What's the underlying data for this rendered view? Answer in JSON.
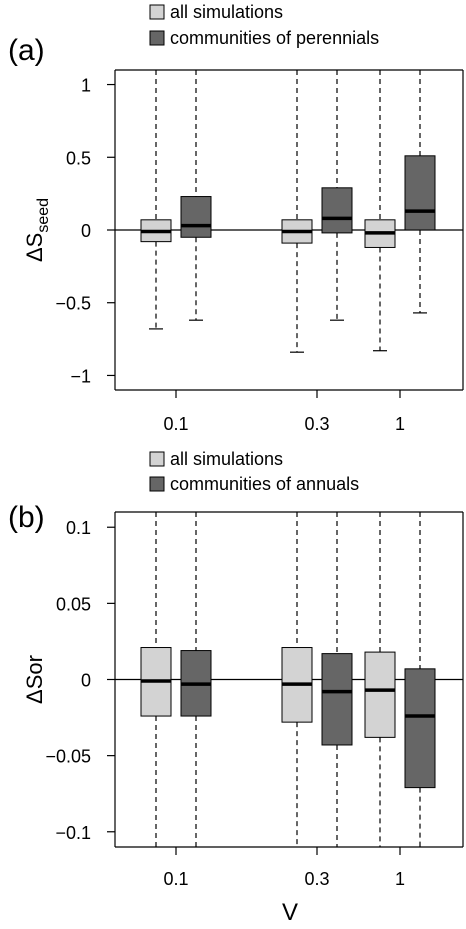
{
  "x_axis_label": "V",
  "chart_data": [
    {
      "type": "boxplot",
      "panel_label": "(a)",
      "ylabel": "ΔS",
      "ylabel_subscript": "seed",
      "ylim": [
        -1.1,
        1.1
      ],
      "yticks": [
        1,
        0.5,
        0,
        -0.5,
        -1
      ],
      "ytick_labels": [
        "1",
        "0.5",
        "0",
        "−0.5",
        "−1"
      ],
      "reference_line": 0,
      "categories": [
        "0.1",
        "0.3",
        "1"
      ],
      "legend": [
        {
          "name": "all simulations",
          "color": "#d3d3d3"
        },
        {
          "name": "communities of perennials",
          "color": "#666666"
        }
      ],
      "series": [
        {
          "name": "all simulations",
          "color": "#d3d3d3",
          "boxes": [
            {
              "min": -0.68,
              "q1": -0.08,
              "median": -0.01,
              "q3": 0.07,
              "max": 1.1
            },
            {
              "min": -0.84,
              "q1": -0.09,
              "median": -0.01,
              "q3": 0.07,
              "max": 1.1
            },
            {
              "min": -0.83,
              "q1": -0.12,
              "median": -0.02,
              "q3": 0.07,
              "max": 1.1
            }
          ]
        },
        {
          "name": "communities of perennials",
          "color": "#666666",
          "boxes": [
            {
              "min": -0.62,
              "q1": -0.05,
              "median": 0.03,
              "q3": 0.23,
              "max": 1.1
            },
            {
              "min": -0.62,
              "q1": -0.02,
              "median": 0.08,
              "q3": 0.29,
              "max": 1.1
            },
            {
              "min": -0.57,
              "q1": 0.0,
              "median": 0.13,
              "q3": 0.51,
              "max": 1.1
            }
          ]
        }
      ]
    },
    {
      "type": "boxplot",
      "panel_label": "(b)",
      "ylabel": "ΔSor",
      "ylim": [
        -0.11,
        0.11
      ],
      "yticks": [
        0.1,
        0.05,
        0,
        -0.05,
        -0.1
      ],
      "ytick_labels": [
        "0.1",
        "0.05",
        "0",
        "−0.05",
        "−0.1"
      ],
      "reference_line": 0,
      "categories": [
        "0.1",
        "0.3",
        "1"
      ],
      "legend": [
        {
          "name": "all simulations",
          "color": "#d3d3d3"
        },
        {
          "name": "communities of annuals",
          "color": "#666666"
        }
      ],
      "series": [
        {
          "name": "all simulations",
          "color": "#d3d3d3",
          "boxes": [
            {
              "min": -0.11,
              "q1": -0.024,
              "median": -0.001,
              "q3": 0.021,
              "max": 0.11
            },
            {
              "min": -0.11,
              "q1": -0.028,
              "median": -0.003,
              "q3": 0.021,
              "max": 0.11
            },
            {
              "min": -0.11,
              "q1": -0.038,
              "median": -0.007,
              "q3": 0.018,
              "max": 0.11
            }
          ]
        },
        {
          "name": "communities of annuals",
          "color": "#666666",
          "boxes": [
            {
              "min": -0.11,
              "q1": -0.024,
              "median": -0.003,
              "q3": 0.019,
              "max": 0.11
            },
            {
              "min": -0.11,
              "q1": -0.043,
              "median": -0.008,
              "q3": 0.017,
              "max": 0.11
            },
            {
              "min": -0.11,
              "q1": -0.071,
              "median": -0.024,
              "q3": 0.007,
              "max": 0.11
            }
          ]
        }
      ]
    }
  ]
}
